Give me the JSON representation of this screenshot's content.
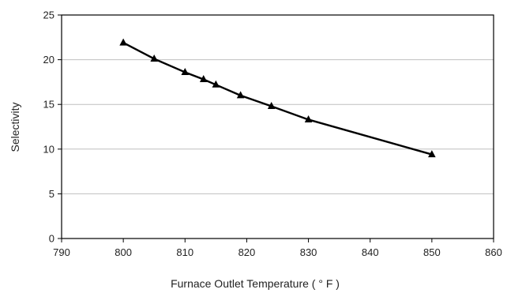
{
  "chart_data": {
    "type": "line",
    "title": "",
    "xlabel": "Furnace Outlet  Temperature ( ° F )",
    "ylabel": "Selectivity",
    "xlim": [
      790,
      860
    ],
    "ylim": [
      0,
      25
    ],
    "xticks": [
      "790",
      "800",
      "810",
      "820",
      "830",
      "840",
      "850",
      "860"
    ],
    "yticks": [
      "0",
      "5",
      "10",
      "15",
      "20",
      "25"
    ],
    "grid": "horizontal",
    "legend": "none",
    "marker": "triangle",
    "line_color": "#000000",
    "grid_color": "#bfbfbf",
    "series": [
      {
        "x": [
          800,
          805,
          810,
          813,
          815,
          819,
          824,
          830,
          850
        ],
        "y": [
          21.9,
          20.1,
          18.6,
          17.8,
          17.2,
          16.0,
          14.8,
          13.3,
          9.4
        ]
      }
    ]
  }
}
